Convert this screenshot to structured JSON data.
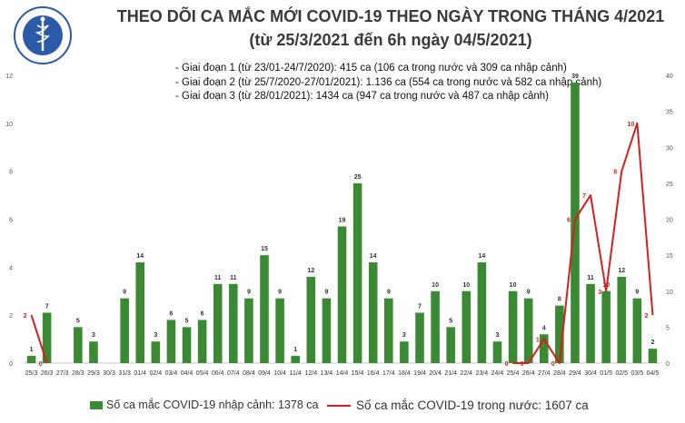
{
  "header": {
    "title_line1": "THEO DÕI CA MẮC MỚI COVID-19 THEO NGÀY TRONG THÁNG 4/2021",
    "title_line2": "(từ 25/3/2021 đến 6h ngày 04/5/2021)"
  },
  "logo": {
    "text": "BỘ Y TẾ · MINISTRY OF HEALTH",
    "color": "#2a5aa8"
  },
  "notes": [
    "- Giai đoạn 1 (từ 23/01-24/7/2020): 415 ca (106 ca trong nước và 309 ca nhập cảnh)",
    "- Giai đoạn 2 (từ 25/7/2020-27/01/2021): 1.136 ca (554 ca trong nước và 582 ca nhập cảnh)",
    "- Giai đoạn 3 (từ 28/01/2021): 1434 ca (947 ca trong nước và 487 ca nhập cảnh)"
  ],
  "legend": {
    "bars_label": "Số ca mắc COVID-19 nhập cảnh: 1378 ca",
    "line_label": "Số ca mắc COVID-19 trong nước: 1607 ca"
  },
  "colors": {
    "bar": "#3a8a34",
    "line": "#d61e1e",
    "text": "#3a3a3a"
  },
  "chart_data": {
    "type": "bar",
    "categories": [
      "25/3",
      "26/3",
      "27/3",
      "28/3",
      "29/3",
      "30/3",
      "31/3",
      "01/4",
      "02/4",
      "03/4",
      "04/4",
      "05/4",
      "06/4",
      "07/4",
      "08/4",
      "09/4",
      "10/4",
      "11/4",
      "12/4",
      "13/4",
      "14/4",
      "15/4",
      "16/4",
      "17/4",
      "18/4",
      "19/4",
      "20/4",
      "21/4",
      "22/4",
      "23/4",
      "24/4",
      "25/4",
      "26/4",
      "27/4",
      "28/4",
      "29/4",
      "30/4",
      "01/5",
      "02/5",
      "03/5",
      "04/5"
    ],
    "series": [
      {
        "name": "Số ca mắc COVID-19 nhập cảnh: 1378 ca",
        "type": "bar",
        "axis": "right",
        "values": [
          1,
          7,
          null,
          5,
          3,
          null,
          9,
          14,
          3,
          6,
          5,
          6,
          11,
          11,
          9,
          15,
          9,
          1,
          12,
          9,
          19,
          25,
          14,
          9,
          3,
          7,
          10,
          5,
          10,
          14,
          3,
          10,
          9,
          4,
          8,
          39,
          11,
          10,
          12,
          9,
          2
        ]
      },
      {
        "name": "Số ca mắc COVID-19 trong nước: 1607 ca",
        "type": "line",
        "axis": "left",
        "values": [
          2,
          0,
          null,
          null,
          null,
          null,
          null,
          null,
          null,
          null,
          null,
          null,
          null,
          null,
          null,
          null,
          null,
          null,
          null,
          null,
          null,
          null,
          null,
          null,
          null,
          null,
          null,
          null,
          null,
          null,
          null,
          0,
          0,
          1,
          0,
          6,
          7,
          3,
          8,
          10,
          2
        ],
        "labels": [
          "2",
          "0",
          "",
          "",
          "",
          "",
          "",
          "",
          "",
          "",
          "",
          "",
          "",
          "",
          "",
          "",
          "",
          "",
          "",
          "",
          "",
          "",
          "",
          "",
          "",
          "",
          "",
          "",
          "",
          "",
          "",
          "0",
          "0",
          "1",
          "0",
          "6",
          "7",
          "3",
          "8",
          "10",
          "2"
        ]
      }
    ],
    "y_left": {
      "ylim": [
        0,
        12
      ],
      "ticks": [
        0,
        2,
        4,
        6,
        8,
        10,
        12
      ]
    },
    "y_right": {
      "ylim": [
        0,
        40
      ],
      "ticks": [
        0,
        5,
        10,
        15,
        20,
        25,
        30,
        35,
        40
      ]
    },
    "grid": false,
    "legend_position": "bottom"
  }
}
